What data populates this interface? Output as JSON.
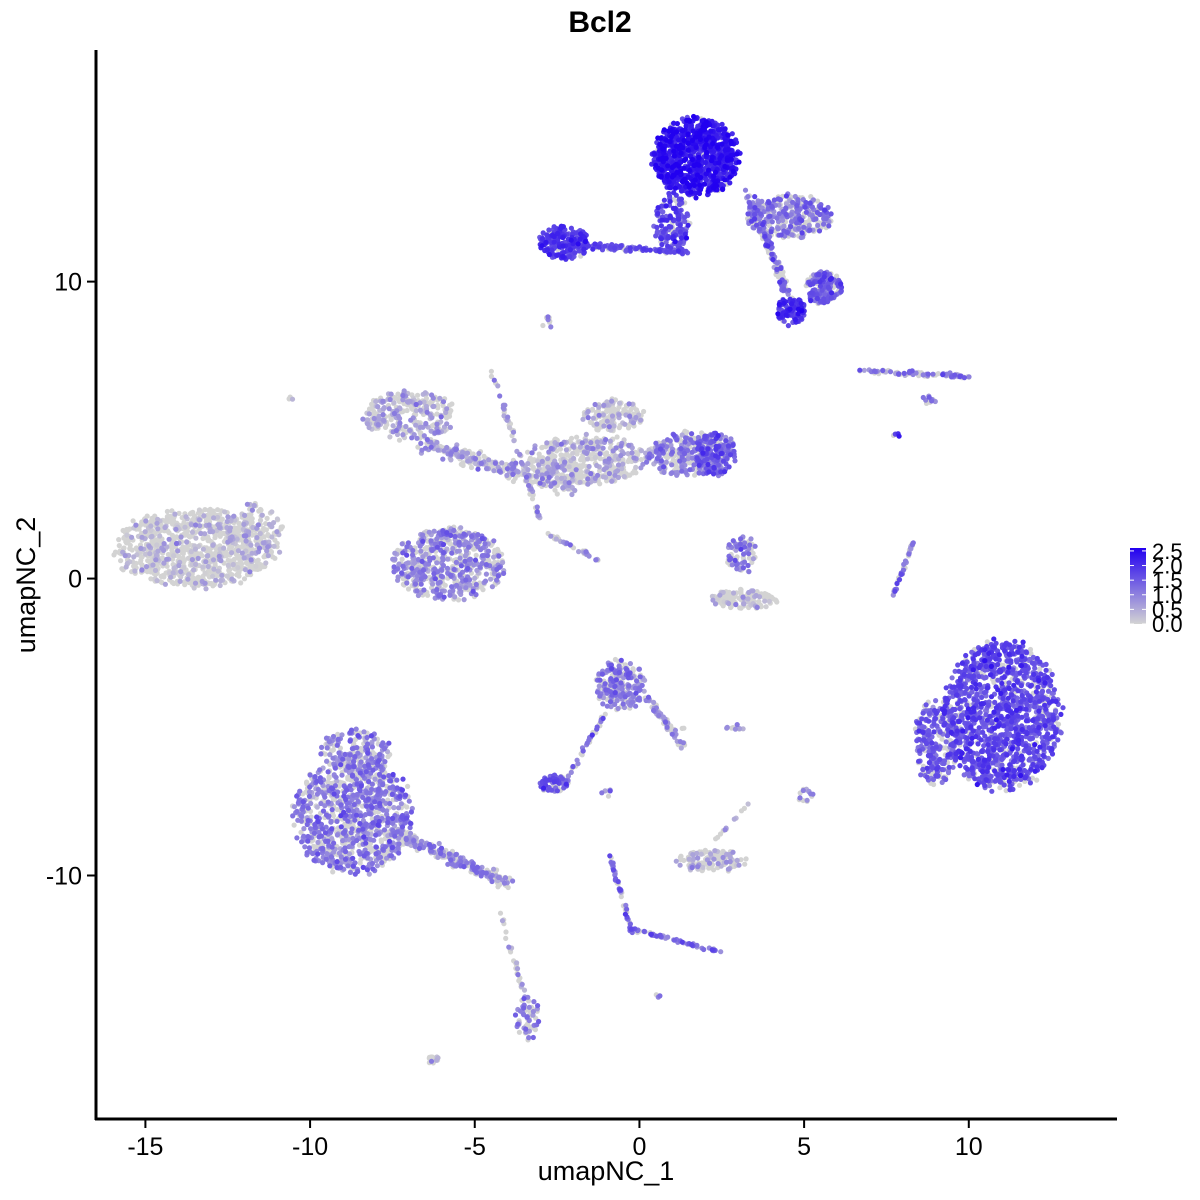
{
  "chart_data": {
    "type": "scatter",
    "title": "Bcl2",
    "xlabel": "umapNC_1",
    "ylabel": "umapNC_2",
    "xlim": [
      -16.5,
      14.5
    ],
    "ylim": [
      -18.2,
      17.8
    ],
    "x_ticks": [
      -15,
      -10,
      -5,
      0,
      5,
      10
    ],
    "x_tick_labels": [
      "-15",
      "-10",
      "-5",
      "0",
      "5",
      "10"
    ],
    "y_ticks": [
      -10,
      0,
      10
    ],
    "y_tick_labels": [
      "-10",
      "0",
      "10"
    ],
    "grid": false,
    "legend_position": "right",
    "color_scale": {
      "low_color": "#d3d3d3",
      "high_color": "#2200f0",
      "min": 0.0,
      "max": 2.6,
      "breaks": [
        0.0,
        0.5,
        1.0,
        1.5,
        2.0,
        2.5
      ],
      "break_labels": [
        "0.0",
        "0.5",
        "1.0",
        "1.5",
        "2.0",
        "2.5"
      ]
    },
    "clusters": [
      {
        "shape": "ellipse",
        "cx": -13.5,
        "cy": 1.0,
        "rx": 2.6,
        "ry": 1.4,
        "n": 900,
        "expr_mean": 0.1
      },
      {
        "shape": "ellipse",
        "cx": -11.7,
        "cy": 1.6,
        "rx": 1.0,
        "ry": 1.0,
        "n": 120,
        "expr_mean": 0.15
      },
      {
        "shape": "ellipse",
        "cx": -8.7,
        "cy": -8.0,
        "rx": 1.9,
        "ry": 2.1,
        "n": 950,
        "expr_mean": 0.8
      },
      {
        "shape": "ellipse",
        "cx": -8.6,
        "cy": -5.8,
        "rx": 1.1,
        "ry": 0.8,
        "n": 180,
        "expr_mean": 0.7
      },
      {
        "shape": "line",
        "x1": -7.5,
        "y1": -8.5,
        "x2": -4.0,
        "y2": -10.3,
        "width": 0.6,
        "n": 250,
        "expr_mean": 0.65
      },
      {
        "shape": "ellipse",
        "cx": -3.4,
        "cy": -14.8,
        "rx": 0.4,
        "ry": 0.8,
        "n": 60,
        "expr_mean": 0.7
      },
      {
        "shape": "line",
        "x1": -4.3,
        "y1": -11.0,
        "x2": -3.5,
        "y2": -14.0,
        "width": 0.2,
        "n": 25,
        "expr_mean": 0.3
      },
      {
        "shape": "ellipse",
        "cx": -6.2,
        "cy": -16.2,
        "rx": 0.3,
        "ry": 0.15,
        "n": 15,
        "expr_mean": 0.0
      },
      {
        "shape": "ellipse",
        "cx": -7.0,
        "cy": 5.5,
        "rx": 1.5,
        "ry": 0.9,
        "n": 280,
        "expr_mean": 0.3
      },
      {
        "shape": "ellipse",
        "cx": -5.8,
        "cy": 0.5,
        "rx": 1.8,
        "ry": 1.3,
        "n": 600,
        "expr_mean": 0.65
      },
      {
        "shape": "line",
        "x1": -6.5,
        "y1": 4.5,
        "x2": -2.0,
        "y2": 3.0,
        "width": 0.8,
        "n": 260,
        "expr_mean": 0.45
      },
      {
        "shape": "line",
        "x1": -4.5,
        "y1": 7.0,
        "x2": -3.0,
        "y2": 2.0,
        "width": 0.2,
        "n": 60,
        "expr_mean": 0.5
      },
      {
        "shape": "line",
        "x1": -2.8,
        "y1": 1.5,
        "x2": -1.2,
        "y2": 0.6,
        "width": 0.15,
        "n": 35,
        "expr_mean": 0.5
      },
      {
        "shape": "ellipse",
        "cx": -1.6,
        "cy": 4.0,
        "rx": 1.9,
        "ry": 0.9,
        "n": 420,
        "expr_mean": 0.3
      },
      {
        "shape": "ellipse",
        "cx": -0.8,
        "cy": 5.5,
        "rx": 1.0,
        "ry": 0.6,
        "n": 140,
        "expr_mean": 0.25
      },
      {
        "shape": "ellipse",
        "cx": 1.5,
        "cy": 4.2,
        "rx": 1.4,
        "ry": 0.8,
        "n": 300,
        "expr_mean": 0.75
      },
      {
        "shape": "ellipse",
        "cx": 2.3,
        "cy": 4.2,
        "rx": 0.7,
        "ry": 0.8,
        "n": 150,
        "expr_mean": 1.2
      },
      {
        "shape": "ellipse",
        "cx": -2.3,
        "cy": 11.3,
        "rx": 0.8,
        "ry": 0.6,
        "n": 200,
        "expr_mean": 1.5
      },
      {
        "shape": "line",
        "x1": -1.5,
        "y1": 11.2,
        "x2": 1.5,
        "y2": 11.0,
        "width": 0.3,
        "n": 110,
        "expr_mean": 1.2
      },
      {
        "shape": "ellipse",
        "cx": 1.7,
        "cy": 14.2,
        "rx": 1.4,
        "ry": 1.4,
        "n": 900,
        "expr_mean": 1.9
      },
      {
        "shape": "ellipse",
        "cx": 1.0,
        "cy": 12.0,
        "rx": 0.6,
        "ry": 1.0,
        "n": 150,
        "expr_mean": 1.4
      },
      {
        "shape": "ellipse",
        "cx": 4.5,
        "cy": 12.2,
        "rx": 1.4,
        "ry": 0.8,
        "n": 320,
        "expr_mean": 0.8
      },
      {
        "shape": "ellipse",
        "cx": 4.6,
        "cy": 9.0,
        "rx": 0.5,
        "ry": 0.5,
        "n": 100,
        "expr_mean": 1.6
      },
      {
        "shape": "ellipse",
        "cx": 5.6,
        "cy": 9.8,
        "rx": 0.6,
        "ry": 0.6,
        "n": 160,
        "expr_mean": 1.1
      },
      {
        "shape": "line",
        "x1": 3.3,
        "y1": 13.0,
        "x2": 4.5,
        "y2": 9.5,
        "width": 0.4,
        "n": 120,
        "expr_mean": 1.0
      },
      {
        "shape": "ellipse",
        "cx": -2.8,
        "cy": 8.6,
        "rx": 0.15,
        "ry": 0.25,
        "n": 8,
        "expr_mean": 0.8
      },
      {
        "shape": "ellipse",
        "cx": -10.6,
        "cy": 6.1,
        "rx": 0.1,
        "ry": 0.1,
        "n": 3,
        "expr_mean": 0.0
      },
      {
        "shape": "line",
        "x1": 6.7,
        "y1": 7.0,
        "x2": 10.0,
        "y2": 6.8,
        "width": 0.2,
        "n": 90,
        "expr_mean": 0.7
      },
      {
        "shape": "ellipse",
        "cx": 8.8,
        "cy": 6.0,
        "rx": 0.25,
        "ry": 0.2,
        "n": 10,
        "expr_mean": 0.8
      },
      {
        "shape": "ellipse",
        "cx": 7.8,
        "cy": 4.8,
        "rx": 0.15,
        "ry": 0.1,
        "n": 4,
        "expr_mean": 1.5
      },
      {
        "shape": "line",
        "x1": 7.7,
        "y1": -0.6,
        "x2": 8.3,
        "y2": 1.2,
        "width": 0.1,
        "n": 40,
        "expr_mean": 0.8
      },
      {
        "shape": "ellipse",
        "cx": 11.0,
        "cy": -4.6,
        "rx": 1.9,
        "ry": 2.7,
        "n": 1300,
        "expr_mean": 1.3
      },
      {
        "shape": "ellipse",
        "cx": 9.0,
        "cy": -5.5,
        "rx": 0.7,
        "ry": 1.5,
        "n": 250,
        "expr_mean": 1.1
      },
      {
        "shape": "ellipse",
        "cx": 3.1,
        "cy": 0.8,
        "rx": 0.5,
        "ry": 0.7,
        "n": 70,
        "expr_mean": 0.8
      },
      {
        "shape": "ellipse",
        "cx": 3.2,
        "cy": -0.7,
        "rx": 1.1,
        "ry": 0.35,
        "n": 130,
        "expr_mean": 0.1
      },
      {
        "shape": "ellipse",
        "cx": -0.6,
        "cy": -3.6,
        "rx": 0.8,
        "ry": 0.9,
        "n": 230,
        "expr_mean": 0.8
      },
      {
        "shape": "line",
        "x1": 0.2,
        "y1": -4.0,
        "x2": 1.3,
        "y2": -5.6,
        "width": 0.35,
        "n": 60,
        "expr_mean": 0.6
      },
      {
        "shape": "line",
        "x1": -1.0,
        "y1": -4.5,
        "x2": -2.3,
        "y2": -6.9,
        "width": 0.15,
        "n": 40,
        "expr_mean": 0.9
      },
      {
        "shape": "ellipse",
        "cx": -2.6,
        "cy": -6.9,
        "rx": 0.5,
        "ry": 0.3,
        "n": 70,
        "expr_mean": 1.1
      },
      {
        "shape": "ellipse",
        "cx": 2.2,
        "cy": -9.5,
        "rx": 1.1,
        "ry": 0.4,
        "n": 130,
        "expr_mean": 0.3
      },
      {
        "shape": "line",
        "x1": 2.3,
        "y1": -8.8,
        "x2": 3.3,
        "y2": -7.6,
        "width": 0.1,
        "n": 12,
        "expr_mean": 0.3
      },
      {
        "shape": "ellipse",
        "cx": 5.0,
        "cy": -7.3,
        "rx": 0.3,
        "ry": 0.25,
        "n": 15,
        "expr_mean": 0.7
      },
      {
        "shape": "line",
        "x1": -0.9,
        "y1": -9.3,
        "x2": -0.2,
        "y2": -12.0,
        "width": 0.15,
        "n": 55,
        "expr_mean": 1.0
      },
      {
        "shape": "line",
        "x1": -0.2,
        "y1": -11.8,
        "x2": 2.5,
        "y2": -12.6,
        "width": 0.15,
        "n": 55,
        "expr_mean": 0.9
      },
      {
        "shape": "ellipse",
        "cx": 0.6,
        "cy": -14.0,
        "rx": 0.1,
        "ry": 0.1,
        "n": 3,
        "expr_mean": 0.7
      },
      {
        "shape": "ellipse",
        "cx": 2.9,
        "cy": -5.0,
        "rx": 0.4,
        "ry": 0.1,
        "n": 10,
        "expr_mean": 0.5
      },
      {
        "shape": "ellipse",
        "cx": 1.1,
        "cy": -5.0,
        "rx": 0.3,
        "ry": 0.1,
        "n": 6,
        "expr_mean": 0.0
      },
      {
        "shape": "ellipse",
        "cx": -1.0,
        "cy": -7.2,
        "rx": 0.2,
        "ry": 0.2,
        "n": 6,
        "expr_mean": 0.6
      }
    ]
  }
}
